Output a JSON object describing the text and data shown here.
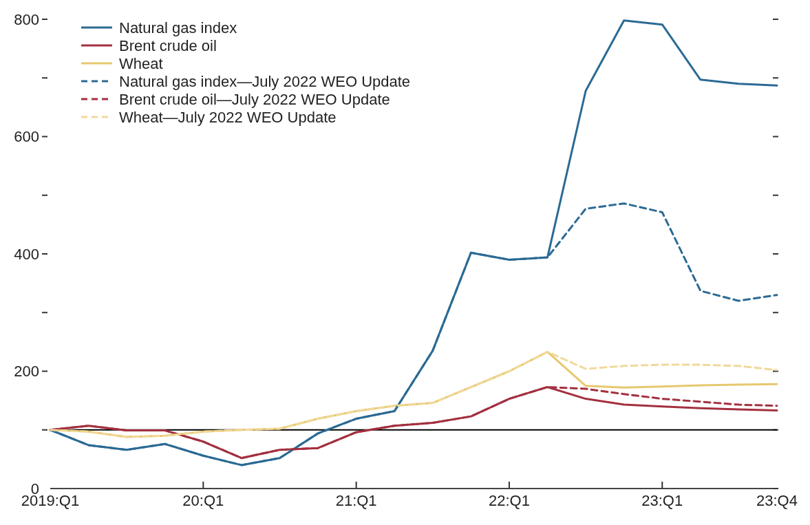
{
  "chart_data": {
    "type": "line",
    "categories": [
      "2019:Q1",
      null,
      null,
      null,
      "20:Q1",
      null,
      null,
      null,
      "21:Q1",
      null,
      null,
      null,
      "22:Q1",
      null,
      null,
      null,
      "23:Q1",
      null,
      null,
      "23:Q4"
    ],
    "ylim": [
      0,
      800
    ],
    "yticks": [
      0,
      {
        "value": 100,
        "label": null
      },
      200,
      {
        "value": 300,
        "label": null
      },
      400,
      {
        "value": 500,
        "label": null
      },
      600,
      {
        "value": 700,
        "label": null
      },
      800
    ],
    "grid": false,
    "legend": "top left",
    "marker": "none",
    "ref_lines": [
      {
        "axis": "y",
        "value": 100,
        "color": "#000000"
      }
    ],
    "series": [
      {
        "name": "Natural gas index",
        "color": "#2b6a94",
        "line_style": "solid",
        "values": [
          100,
          74,
          66,
          76,
          56,
          40,
          52,
          94,
          119,
          132,
          235,
          402,
          390,
          394,
          678,
          798,
          791,
          697,
          690,
          687
        ]
      },
      {
        "name": "Brent crude oil",
        "color": "#a3303f",
        "line_style": "solid",
        "values": [
          100,
          107,
          99,
          99,
          80,
          52,
          66,
          69,
          96,
          107,
          112,
          123,
          153,
          173,
          153,
          143,
          140,
          137,
          135,
          133
        ]
      },
      {
        "name": "Wheat",
        "color": "#e6c86e",
        "line_style": "solid",
        "values": [
          100,
          97,
          88,
          90,
          97,
          100,
          102,
          119,
          132,
          141,
          146,
          173,
          200,
          233,
          175,
          172,
          174,
          176,
          177,
          178
        ]
      },
      {
        "name": "Natural gas index—July 2022 WEO Update",
        "color": "#2b6a94",
        "line_style": "dashed",
        "values": [
          100,
          74,
          66,
          76,
          56,
          40,
          52,
          94,
          119,
          132,
          235,
          402,
          390,
          394,
          477,
          486,
          471,
          337,
          320,
          330
        ]
      },
      {
        "name": "Brent crude oil—July 2022 WEO Update",
        "color": "#a3303f",
        "line_style": "dashed",
        "values": [
          100,
          107,
          99,
          99,
          80,
          52,
          66,
          69,
          96,
          107,
          112,
          123,
          153,
          173,
          170,
          161,
          153,
          148,
          143,
          141
        ]
      },
      {
        "name": "Wheat—July 2022 WEO Update",
        "color": "#f0d99a",
        "line_style": "dashed",
        "values": [
          100,
          97,
          88,
          90,
          97,
          100,
          102,
          119,
          132,
          141,
          146,
          173,
          200,
          233,
          204,
          209,
          211,
          211,
          209,
          202
        ]
      }
    ]
  }
}
